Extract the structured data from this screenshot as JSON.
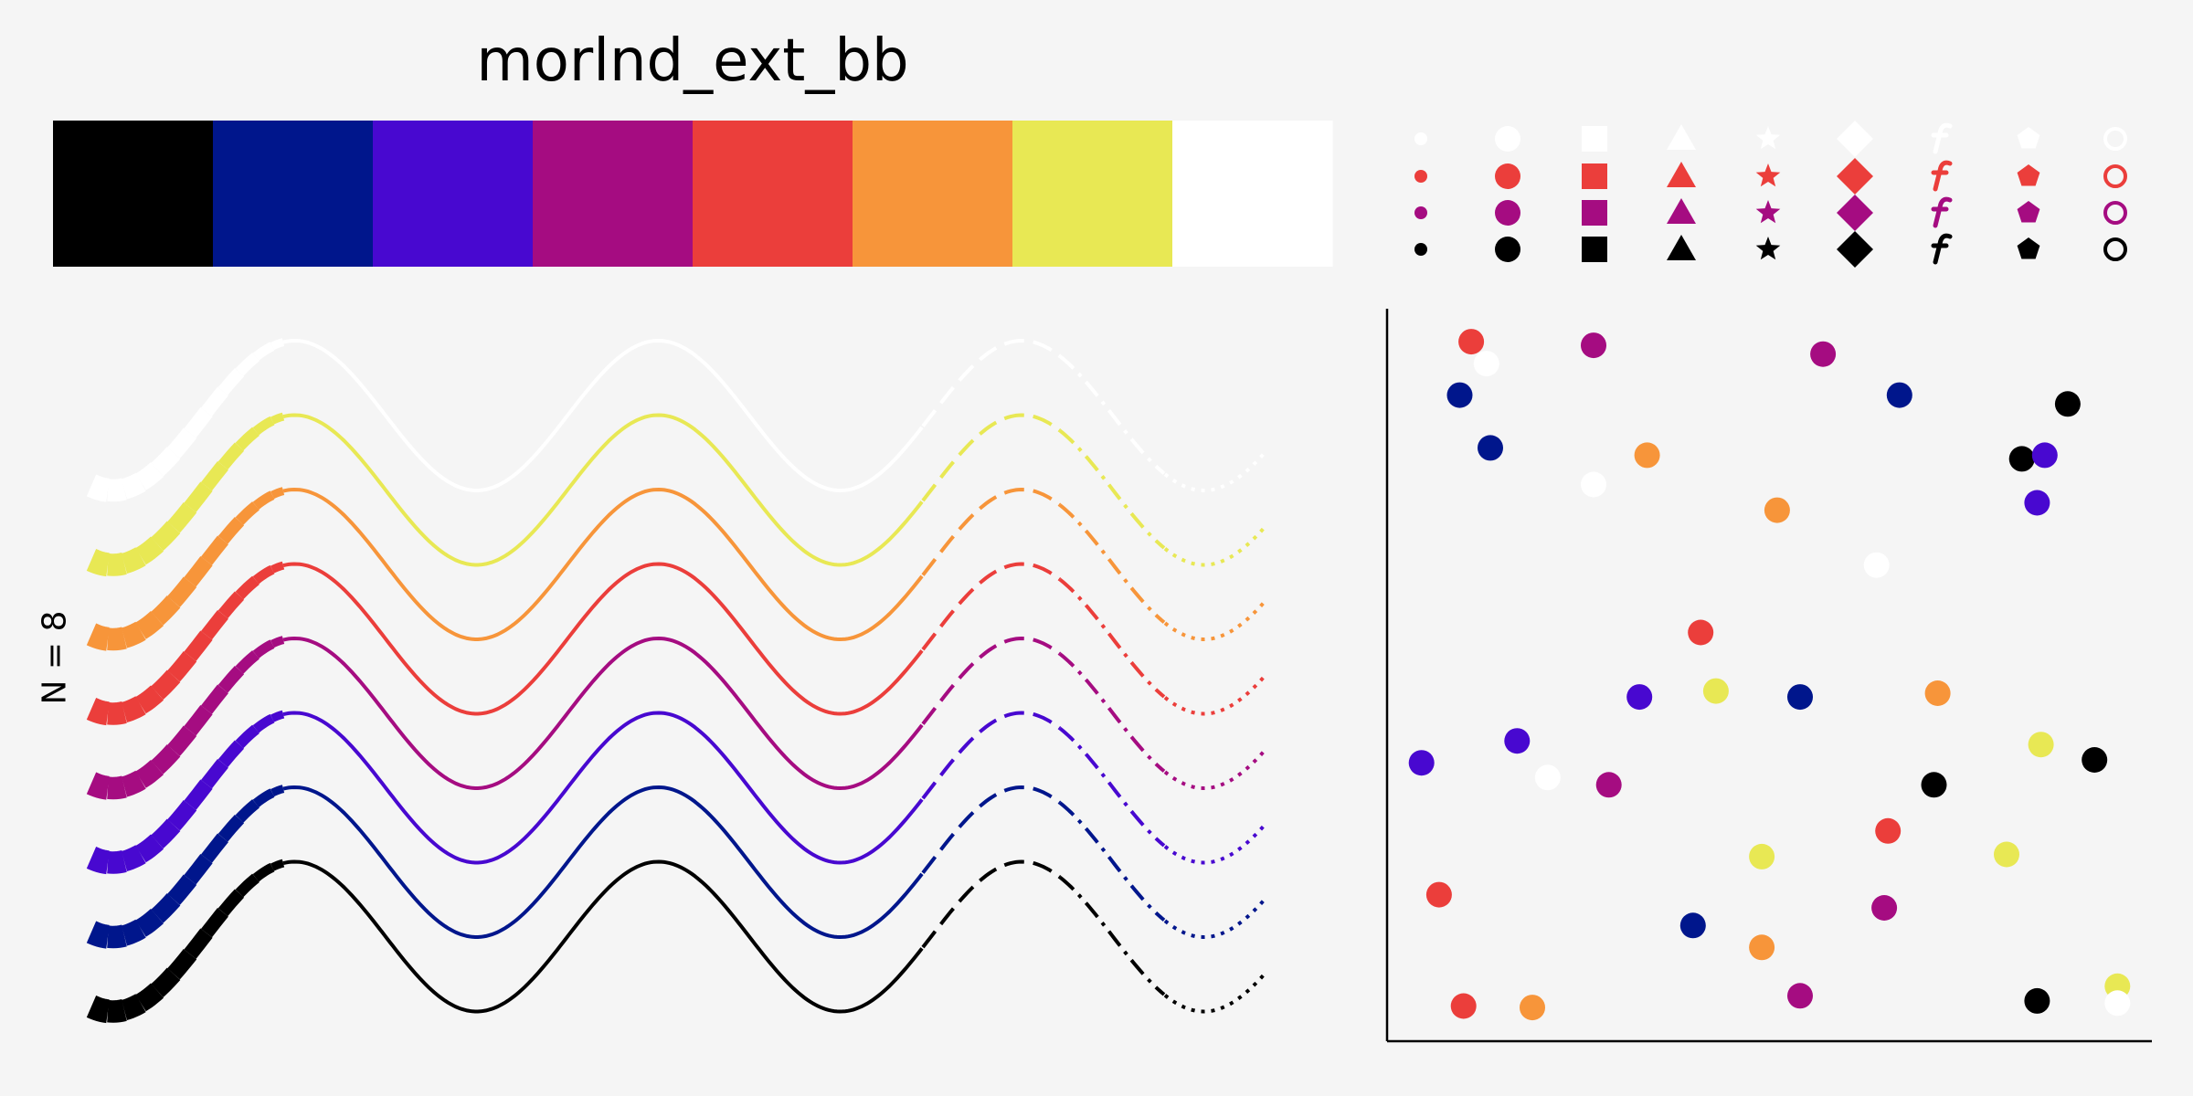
{
  "chart_data": [
    {
      "type": "palette",
      "title": "morlnd_ext_bb",
      "colors": [
        "#000000",
        "#00168c",
        "#4808d0",
        "#a50c81",
        "#eb3e3b",
        "#f7953a",
        "#e8e854",
        "#ffffff"
      ]
    },
    {
      "type": "marker_grid",
      "markers": [
        "circle-small",
        "circle",
        "square",
        "triangle",
        "star",
        "diamond",
        "f-glyph",
        "pentagon",
        "circle-open"
      ],
      "row_colors": [
        "#ffffff",
        "#eb3e3b",
        "#a50c81",
        "#000000"
      ]
    },
    {
      "type": "line",
      "ylabel": "N = 8",
      "series_colors": [
        "#ffffff",
        "#e8e854",
        "#f7953a",
        "#eb3e3b",
        "#a50c81",
        "#4808d0",
        "#00168c",
        "#000000"
      ],
      "segment_styles": [
        "thick-solid",
        "solid",
        "dashed",
        "dashdot",
        "dotted"
      ]
    },
    {
      "type": "scatter",
      "xlim": [
        0,
        1
      ],
      "ylim": [
        0,
        1
      ],
      "points": [
        {
          "x": 0.11,
          "y": 0.955,
          "c": "#eb3e3b"
        },
        {
          "x": 0.13,
          "y": 0.925,
          "c": "#ffffff"
        },
        {
          "x": 0.27,
          "y": 0.95,
          "c": "#a50c81"
        },
        {
          "x": 0.57,
          "y": 0.938,
          "c": "#a50c81"
        },
        {
          "x": 0.095,
          "y": 0.882,
          "c": "#00168c"
        },
        {
          "x": 0.67,
          "y": 0.882,
          "c": "#00168c"
        },
        {
          "x": 0.89,
          "y": 0.87,
          "c": "#000000"
        },
        {
          "x": 0.135,
          "y": 0.81,
          "c": "#00168c"
        },
        {
          "x": 0.34,
          "y": 0.8,
          "c": "#f7953a"
        },
        {
          "x": 0.83,
          "y": 0.795,
          "c": "#000000"
        },
        {
          "x": 0.86,
          "y": 0.8,
          "c": "#4808d0"
        },
        {
          "x": 0.27,
          "y": 0.76,
          "c": "#ffffff"
        },
        {
          "x": 0.85,
          "y": 0.735,
          "c": "#4808d0"
        },
        {
          "x": 0.51,
          "y": 0.725,
          "c": "#f7953a"
        },
        {
          "x": 0.64,
          "y": 0.65,
          "c": "#ffffff"
        },
        {
          "x": 0.41,
          "y": 0.558,
          "c": "#eb3e3b"
        },
        {
          "x": 0.43,
          "y": 0.478,
          "c": "#e8e854"
        },
        {
          "x": 0.33,
          "y": 0.47,
          "c": "#4808d0"
        },
        {
          "x": 0.54,
          "y": 0.47,
          "c": "#00168c"
        },
        {
          "x": 0.72,
          "y": 0.475,
          "c": "#f7953a"
        },
        {
          "x": 0.17,
          "y": 0.41,
          "c": "#4808d0"
        },
        {
          "x": 0.855,
          "y": 0.405,
          "c": "#e8e854"
        },
        {
          "x": 0.045,
          "y": 0.38,
          "c": "#4808d0"
        },
        {
          "x": 0.925,
          "y": 0.384,
          "c": "#000000"
        },
        {
          "x": 0.21,
          "y": 0.36,
          "c": "#ffffff"
        },
        {
          "x": 0.29,
          "y": 0.35,
          "c": "#a50c81"
        },
        {
          "x": 0.715,
          "y": 0.35,
          "c": "#000000"
        },
        {
          "x": 0.655,
          "y": 0.287,
          "c": "#eb3e3b"
        },
        {
          "x": 0.49,
          "y": 0.252,
          "c": "#e8e854"
        },
        {
          "x": 0.81,
          "y": 0.255,
          "c": "#e8e854"
        },
        {
          "x": 0.068,
          "y": 0.2,
          "c": "#eb3e3b"
        },
        {
          "x": 0.65,
          "y": 0.182,
          "c": "#a50c81"
        },
        {
          "x": 0.4,
          "y": 0.158,
          "c": "#00168c"
        },
        {
          "x": 0.49,
          "y": 0.128,
          "c": "#f7953a"
        },
        {
          "x": 0.54,
          "y": 0.062,
          "c": "#a50c81"
        },
        {
          "x": 0.1,
          "y": 0.048,
          "c": "#eb3e3b"
        },
        {
          "x": 0.19,
          "y": 0.046,
          "c": "#f7953a"
        },
        {
          "x": 0.85,
          "y": 0.055,
          "c": "#000000"
        },
        {
          "x": 0.955,
          "y": 0.075,
          "c": "#e8e854"
        },
        {
          "x": 0.955,
          "y": 0.052,
          "c": "#ffffff"
        }
      ]
    }
  ]
}
